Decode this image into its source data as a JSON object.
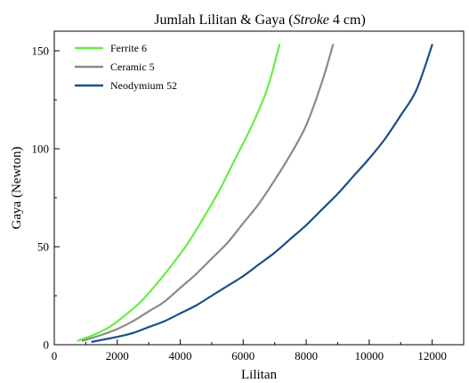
{
  "chart_data": {
    "type": "line",
    "title_prefix": "Jumlah Lilitan & Gaya (",
    "title_italic": "Stroke",
    "title_suffix": " 4 cm)",
    "xlabel": "Lilitan",
    "ylabel": "Gaya (Newton)",
    "xlim": [
      0,
      13000
    ],
    "ylim": [
      0,
      160
    ],
    "xticks": [
      0,
      2000,
      4000,
      6000,
      8000,
      10000,
      12000
    ],
    "yticks": [
      0,
      50,
      100,
      150
    ],
    "grid": false,
    "legend_position": "top-left",
    "series": [
      {
        "name": "Ferrite 6",
        "color": "#66ee44",
        "x": [
          750,
          1250,
          1750,
          2250,
          2750,
          3250,
          3750,
          4250,
          4750,
          5250,
          5750,
          6250,
          6750,
          7150
        ],
        "y": [
          2,
          5,
          9,
          15,
          22,
          31,
          41,
          52,
          65,
          79,
          95,
          111,
          130,
          153
        ]
      },
      {
        "name": "Ceramic 5",
        "color": "#8a8a8a",
        "x": [
          900,
          1500,
          2000,
          2500,
          3000,
          3500,
          4000,
          4500,
          5000,
          5500,
          6000,
          6500,
          7000,
          7500,
          8000,
          8500,
          8850
        ],
        "y": [
          2,
          5,
          8,
          12,
          17,
          22,
          29,
          36,
          44,
          52,
          62,
          72,
          84,
          97,
          112,
          134,
          153
        ]
      },
      {
        "name": "Neodymium 52",
        "color": "#1a4f8a",
        "x": [
          1200,
          2000,
          2500,
          3000,
          3500,
          4000,
          4500,
          5000,
          5500,
          6000,
          6500,
          7000,
          7500,
          8000,
          8500,
          9000,
          9500,
          10000,
          10500,
          11000,
          11500,
          12000
        ],
        "y": [
          1.5,
          4,
          6,
          9,
          12,
          16,
          20,
          25,
          30,
          35,
          41,
          47,
          54,
          61,
          69,
          77,
          86,
          95,
          105,
          117,
          130,
          153
        ]
      }
    ]
  }
}
